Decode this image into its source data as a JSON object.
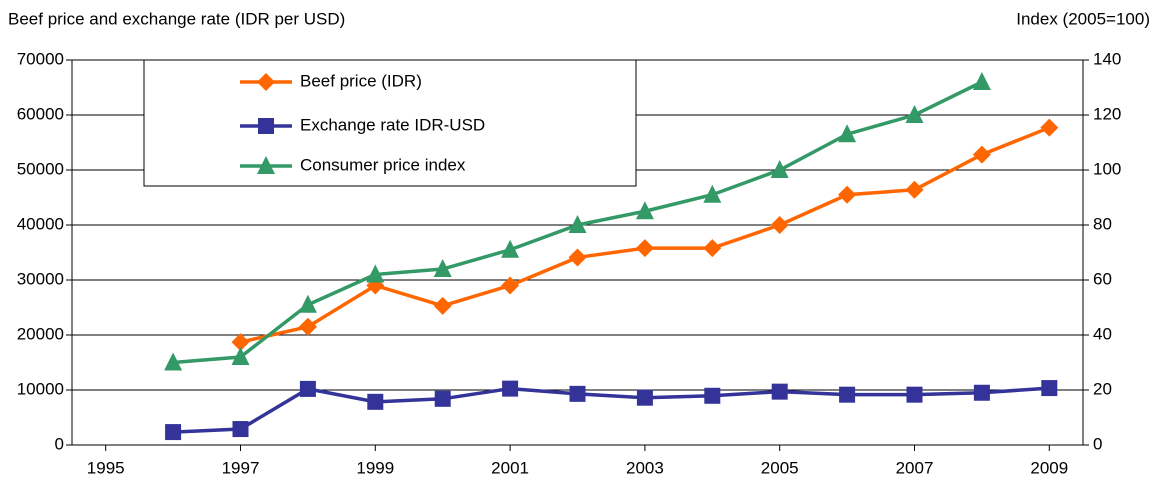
{
  "chart_data": {
    "type": "line",
    "ylabel": "Beef price and exchange rate (IDR per USD)",
    "y2label": "Index (2005=100)",
    "x": [
      1996,
      1997,
      1998,
      1999,
      2000,
      2001,
      2002,
      2003,
      2004,
      2005,
      2006,
      2007,
      2008,
      2009
    ],
    "xlim": [
      1994.5,
      2009.5
    ],
    "xticks": [
      1995,
      1997,
      1999,
      2001,
      2003,
      2005,
      2007,
      2009
    ],
    "ylim": [
      0,
      70000
    ],
    "yticks": [
      0,
      10000,
      20000,
      30000,
      40000,
      50000,
      60000,
      70000
    ],
    "y2lim": [
      0,
      140
    ],
    "y2ticks": [
      0,
      20,
      40,
      60,
      80,
      100,
      120,
      140
    ],
    "grid": true,
    "series": [
      {
        "name": "Beef price (IDR)",
        "color": "#ff6600",
        "marker": "diamond",
        "values": [
          null,
          18700,
          21500,
          29000,
          25300,
          29000,
          34100,
          35800,
          35800,
          40000,
          45500,
          46400,
          52800,
          57700
        ]
      },
      {
        "name": "Exchange rate IDR-USD",
        "color": "#333399",
        "marker": "square",
        "values": [
          2350,
          2900,
          10200,
          7850,
          8400,
          10250,
          9300,
          8600,
          8950,
          9700,
          9150,
          9150,
          9500,
          10350
        ]
      },
      {
        "name": "Consumer price index",
        "color": "#339966",
        "marker": "triangle",
        "axis": "y2",
        "values": [
          30,
          32,
          51,
          62,
          64,
          71,
          80,
          85,
          91,
          100,
          113,
          120,
          132,
          null
        ]
      }
    ]
  }
}
